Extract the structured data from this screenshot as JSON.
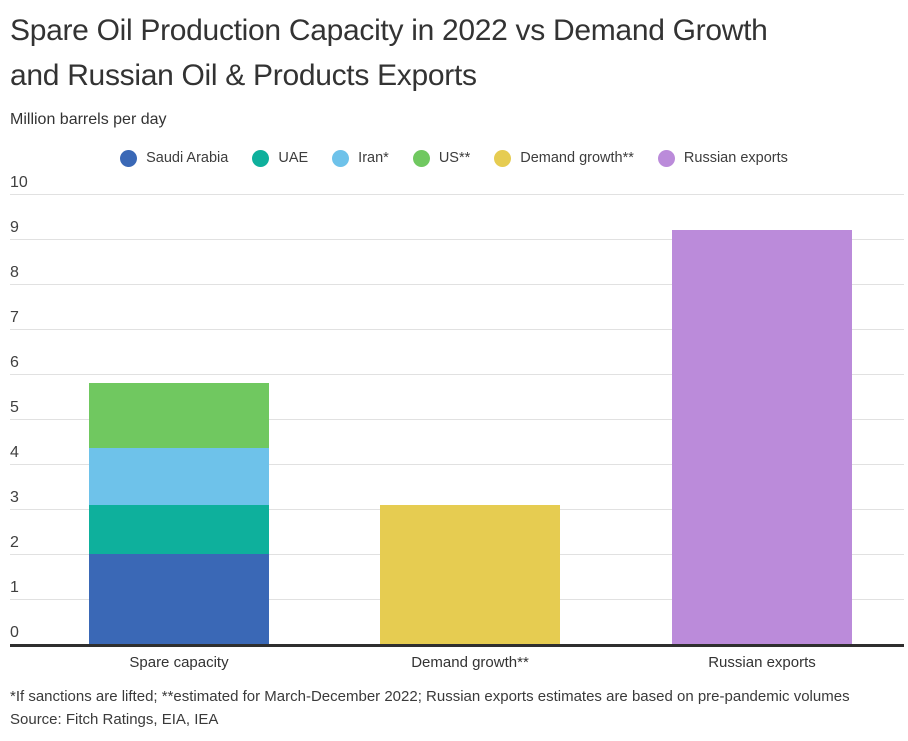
{
  "header": {
    "title": "Spare Oil Production Capacity in 2022 vs Demand Growth and Russian Oil & Products Exports",
    "title_lines": [
      "Spare Oil Production Capacity in 2022 vs Demand Growth",
      "and Russian Oil & Products Exports"
    ],
    "unit_label": "Million barrels per day"
  },
  "legend": {
    "items": [
      {
        "label": "Saudi Arabia",
        "color": "#3a68b6"
      },
      {
        "label": "UAE",
        "color": "#0eb09c"
      },
      {
        "label": "Iran*",
        "color": "#6ec2ea"
      },
      {
        "label": "US**",
        "color": "#70c860"
      },
      {
        "label": "Demand growth**",
        "color": "#e6cc51"
      },
      {
        "label": "Russian exports",
        "color": "#bb8bda"
      }
    ]
  },
  "chart_data": {
    "type": "bar",
    "stacked": true,
    "title": "Spare Oil Production Capacity in 2022 vs Demand Growth and Russian Oil & Products Exports",
    "ylabel": "Million barrels per day",
    "xlabel": "",
    "ylim": [
      0,
      10
    ],
    "yticks": [
      0,
      1,
      2,
      3,
      4,
      5,
      6,
      7,
      8,
      9,
      10
    ],
    "grid": true,
    "legend_position": "top",
    "categories": [
      "Spare capacity",
      "Demand growth**",
      "Russian exports"
    ],
    "series": [
      {
        "name": "Saudi Arabia",
        "color": "#3a68b6",
        "values": [
          2.0,
          null,
          null
        ]
      },
      {
        "name": "UAE",
        "color": "#0eb09c",
        "values": [
          1.1,
          null,
          null
        ]
      },
      {
        "name": "Iran*",
        "color": "#6ec2ea",
        "values": [
          1.25,
          null,
          null
        ]
      },
      {
        "name": "US**",
        "color": "#70c860",
        "values": [
          1.45,
          null,
          null
        ]
      },
      {
        "name": "Demand growth**",
        "color": "#e6cc51",
        "values": [
          null,
          3.1,
          null
        ]
      },
      {
        "name": "Russian exports",
        "color": "#bb8bda",
        "values": [
          null,
          null,
          9.2
        ]
      }
    ],
    "totals": [
      5.8,
      3.1,
      9.2
    ]
  },
  "footer": {
    "footnote": "*If sanctions are lifted; **estimated for March-December 2022; Russian exports estimates are based on pre-pandemic volumes",
    "source": "Source: Fitch Ratings, EIA, IEA"
  }
}
